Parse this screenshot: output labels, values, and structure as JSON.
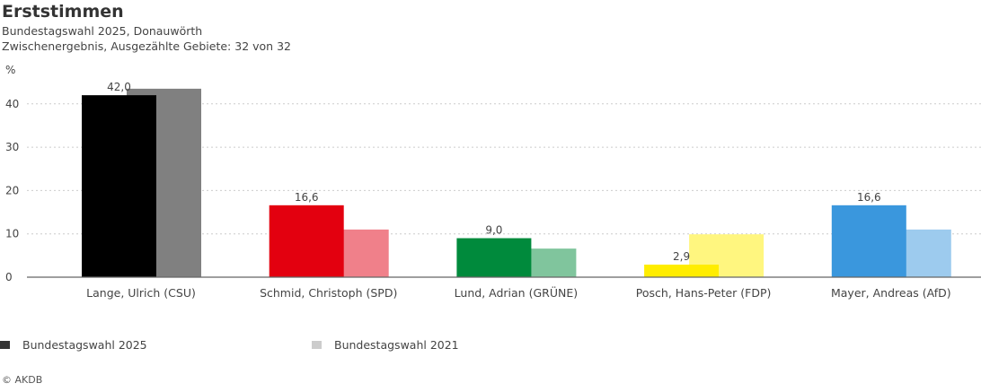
{
  "title": "Erststimmen",
  "subtitle1": "Bundestagswahl 2025, Donauwörth",
  "subtitle2": "Zwischenergebnis, Ausgezählte Gebiete: 32 von 32",
  "copyright": "© AKDB",
  "chart_data": {
    "type": "bar",
    "ylabel": "%",
    "ylim": [
      0,
      45
    ],
    "yticks": [
      0,
      10,
      20,
      30,
      40
    ],
    "grid": true,
    "legend_position": "bottom-left",
    "categories": [
      "Lange, Ulrich (CSU)",
      "Schmid, Christoph (SPD)",
      "Lund, Adrian (GRÜNE)",
      "Posch, Hans-Peter (FDP)",
      "Mayer, Andreas (AfD)"
    ],
    "series": [
      {
        "name": "Bundestagswahl 2025",
        "values": [
          42.0,
          16.6,
          9.0,
          2.9,
          16.6
        ],
        "labels": [
          "42,0",
          "16,6",
          "9,0",
          "2,9",
          "16,6"
        ],
        "colors": [
          "#000000",
          "#e3000f",
          "#008a3c",
          "#ffed00",
          "#3a97dd"
        ],
        "legend_color": "#333333"
      },
      {
        "name": "Bundestagswahl 2021",
        "values": [
          43.5,
          11.0,
          6.6,
          9.9,
          11.0
        ],
        "colors": [
          "#808080",
          "#f0808a",
          "#80c59d",
          "#fff67f",
          "#9dcbee"
        ],
        "legend_color": "#cccccc"
      }
    ]
  }
}
